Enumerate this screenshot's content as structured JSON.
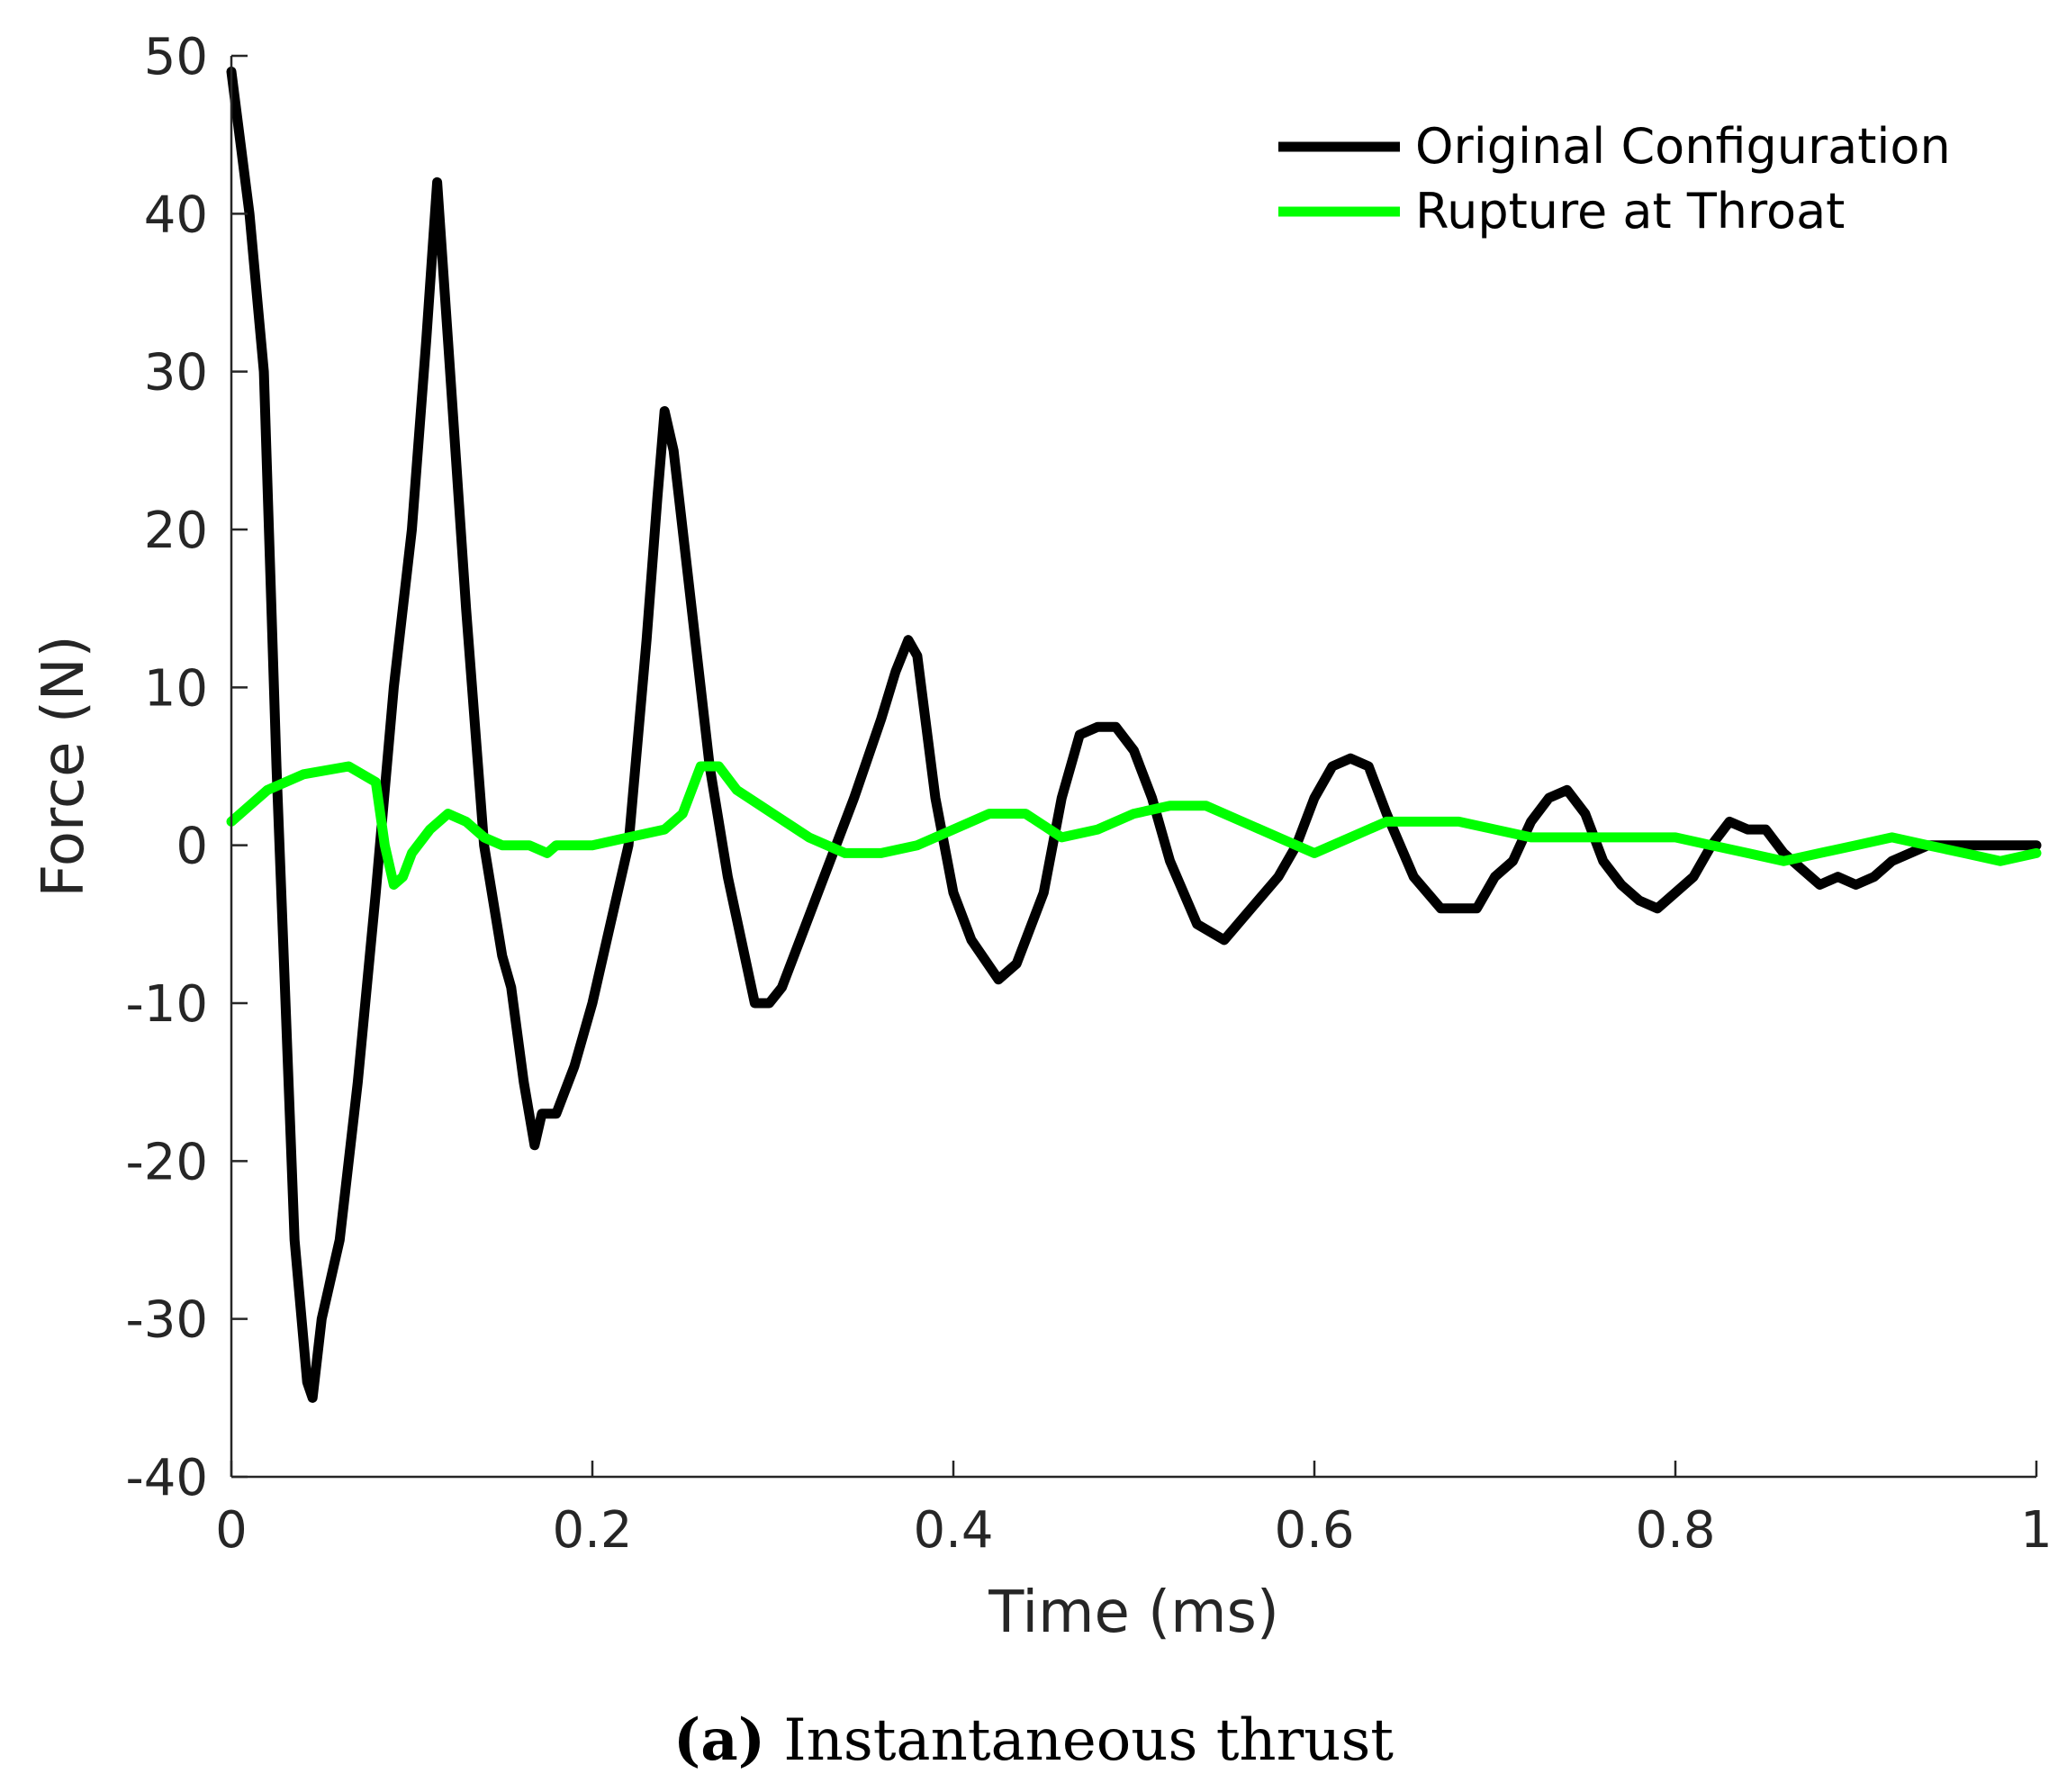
{
  "caption": {
    "tag": "(a)",
    "text": "Instantaneous thrust"
  },
  "chart_data": {
    "type": "line",
    "title": "",
    "xlabel": "Time (ms)",
    "ylabel": "Force (N)",
    "xlim": [
      0,
      1
    ],
    "ylim": [
      -40,
      50
    ],
    "xticks": [
      0,
      0.2,
      0.4,
      0.6,
      0.8,
      1
    ],
    "xtick_labels": [
      "0",
      "0.2",
      "0.4",
      "0.6",
      "0.8",
      "1"
    ],
    "yticks": [
      -40,
      -30,
      -20,
      -10,
      0,
      10,
      20,
      30,
      40,
      50
    ],
    "ytick_labels": [
      "-40",
      "-30",
      "-20",
      "-10",
      "0",
      "10",
      "20",
      "30",
      "40",
      "50"
    ],
    "grid": false,
    "legend_position": "top-right",
    "series": [
      {
        "name": "Original Configuration",
        "color": "#000000",
        "x": [
          0,
          0.01,
          0.018,
          0.025,
          0.035,
          0.042,
          0.045,
          0.05,
          0.06,
          0.07,
          0.08,
          0.09,
          0.1,
          0.108,
          0.114,
          0.12,
          0.13,
          0.14,
          0.15,
          0.155,
          0.162,
          0.168,
          0.172,
          0.18,
          0.19,
          0.2,
          0.21,
          0.22,
          0.23,
          0.236,
          0.24,
          0.245,
          0.255,
          0.265,
          0.275,
          0.29,
          0.298,
          0.305,
          0.315,
          0.325,
          0.335,
          0.345,
          0.36,
          0.368,
          0.375,
          0.38,
          0.39,
          0.4,
          0.41,
          0.425,
          0.435,
          0.45,
          0.46,
          0.47,
          0.48,
          0.49,
          0.5,
          0.51,
          0.52,
          0.535,
          0.55,
          0.565,
          0.58,
          0.59,
          0.6,
          0.61,
          0.62,
          0.63,
          0.64,
          0.655,
          0.67,
          0.68,
          0.69,
          0.7,
          0.71,
          0.72,
          0.73,
          0.74,
          0.75,
          0.76,
          0.77,
          0.78,
          0.79,
          0.8,
          0.81,
          0.82,
          0.83,
          0.84,
          0.85,
          0.86,
          0.87,
          0.88,
          0.89,
          0.9,
          0.91,
          0.92,
          0.93,
          0.94,
          0.95,
          0.96,
          0.97,
          0.98,
          0.99,
          1.0
        ],
        "values": [
          49,
          40,
          30,
          5,
          -25,
          -34,
          -35,
          -30,
          -25,
          -15,
          -3,
          10,
          20,
          32,
          42,
          32,
          15,
          0,
          -7,
          -9,
          -15,
          -19,
          -17,
          -17,
          -14,
          -10,
          -5,
          0,
          13,
          22,
          27.5,
          25,
          15,
          5,
          -2,
          -10,
          -10,
          -9,
          -6,
          -3,
          0,
          3,
          8,
          11,
          13,
          12,
          3,
          -3,
          -6,
          -8.5,
          -7.5,
          -3,
          3,
          7,
          7.5,
          7.5,
          6,
          3,
          -1,
          -5,
          -6,
          -4,
          -2,
          0,
          3,
          5,
          5.5,
          5,
          2,
          -2,
          -4,
          -4,
          -4,
          -2,
          -1,
          1.5,
          3,
          3.5,
          2,
          -1,
          -2.5,
          -3.5,
          -4,
          -3,
          -2,
          0,
          1.5,
          1,
          1,
          -0.5,
          -1.5,
          -2.5,
          -2,
          -2.5,
          -2,
          -1,
          -0.5,
          0,
          0,
          0,
          0,
          0,
          0,
          0
        ]
      },
      {
        "name": "Rupture at Throat",
        "color": "#00ff00",
        "x": [
          0,
          0.02,
          0.04,
          0.065,
          0.08,
          0.085,
          0.09,
          0.095,
          0.1,
          0.11,
          0.12,
          0.13,
          0.14,
          0.15,
          0.155,
          0.165,
          0.175,
          0.18,
          0.19,
          0.2,
          0.22,
          0.24,
          0.25,
          0.26,
          0.27,
          0.28,
          0.3,
          0.32,
          0.34,
          0.36,
          0.38,
          0.4,
          0.42,
          0.44,
          0.46,
          0.48,
          0.5,
          0.52,
          0.54,
          0.56,
          0.58,
          0.6,
          0.62,
          0.64,
          0.66,
          0.68,
          0.7,
          0.72,
          0.74,
          0.76,
          0.78,
          0.8,
          0.82,
          0.84,
          0.86,
          0.88,
          0.9,
          0.92,
          0.94,
          0.96,
          0.98,
          1.0
        ],
        "values": [
          1.5,
          3.5,
          4.5,
          5,
          4,
          0,
          -2.5,
          -2,
          -0.5,
          1,
          2,
          1.5,
          0.5,
          0,
          0,
          0,
          -0.5,
          0,
          0,
          0,
          0.5,
          1,
          2,
          5,
          5,
          3.5,
          2,
          0.5,
          -0.5,
          -0.5,
          0,
          1,
          2,
          2,
          0.5,
          1,
          2,
          2.5,
          2.5,
          1.5,
          0.5,
          -0.5,
          0.5,
          1.5,
          1.5,
          1.5,
          1,
          0.5,
          0.5,
          0.5,
          0.5,
          0.5,
          0,
          -0.5,
          -1,
          -0.5,
          0,
          0.5,
          0,
          -0.5,
          -1,
          -0.5
        ]
      }
    ]
  }
}
